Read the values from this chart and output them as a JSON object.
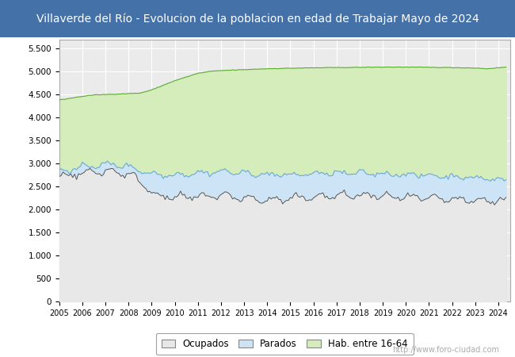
{
  "title": "Villaverde del Río - Evolucion de la poblacion en edad de Trabajar Mayo de 2024",
  "title_bg": "#4472a8",
  "title_color": "white",
  "title_fontsize": 10,
  "ylabel_ticks": [
    0,
    500,
    1000,
    1500,
    2000,
    2500,
    3000,
    3500,
    4000,
    4500,
    5000,
    5500
  ],
  "xlim_start": 2005.0,
  "xlim_end": 2024.5,
  "ylim_max": 5700,
  "plot_bg": "#ebebeb",
  "color_hab_fill": "#d4edbb",
  "color_hab_line": "#5aaa30",
  "color_parados_fill": "#cce4f5",
  "color_parados_line": "#6aaad4",
  "color_ocupados_fill": "#e8e8e8",
  "color_ocupados_line": "#555555",
  "legend_labels": [
    "Ocupados",
    "Parados",
    "Hab. entre 16-64"
  ],
  "watermark": "http://www.foro-ciudad.com",
  "grid_color": "#ffffff",
  "spine_color": "#aaaaaa"
}
